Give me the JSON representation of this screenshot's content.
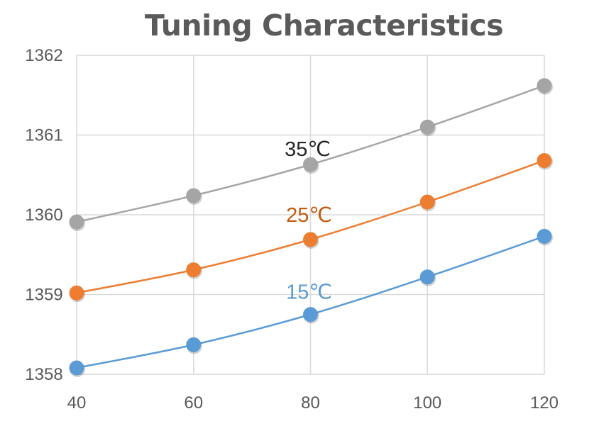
{
  "chart_data": {
    "type": "line",
    "title": "Tuning Characteristics",
    "xlabel": "",
    "ylabel": "",
    "x": [
      40,
      60,
      80,
      100,
      120
    ],
    "xlim": [
      40,
      120
    ],
    "ylim": [
      1358,
      1362
    ],
    "x_ticks": [
      "40",
      "60",
      "80",
      "100",
      "120"
    ],
    "y_ticks": [
      "1358",
      "1359",
      "1360",
      "1361",
      "1362"
    ],
    "grid": true,
    "series": [
      {
        "name": "15°C",
        "label": "15℃",
        "color": "#5b9bd5",
        "values": [
          1358.08,
          1358.37,
          1358.75,
          1359.22,
          1359.73
        ]
      },
      {
        "name": "25°C",
        "label": "25℃",
        "color": "#ed7d31",
        "values": [
          1359.02,
          1359.31,
          1359.69,
          1360.16,
          1360.68
        ]
      },
      {
        "name": "35°C",
        "label": "35℃",
        "color": "#a5a5a5",
        "values": [
          1359.91,
          1360.24,
          1360.63,
          1361.1,
          1361.62
        ]
      }
    ],
    "series_label_colors": [
      "#5b9bd5",
      "#c55a11",
      "#262626"
    ]
  }
}
